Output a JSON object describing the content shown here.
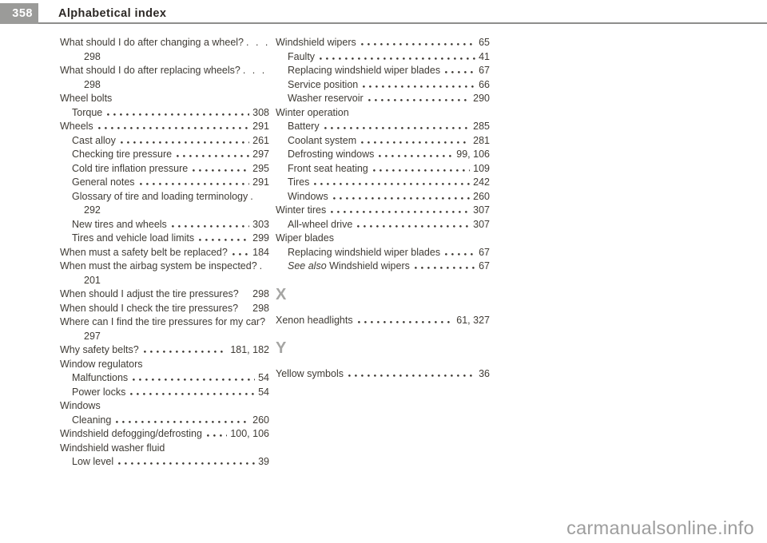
{
  "header": {
    "page_number": "358",
    "title": "Alphabetical index"
  },
  "watermark": {
    "text": "carmanualsonline.info"
  },
  "colors": {
    "badge_bg": "#9b9b99",
    "title": "#2c2825",
    "text": "#3f3b35",
    "letter": "#a5a5a3",
    "rule": "#8e8e8c",
    "watermark": "#9d9d9d"
  },
  "index": {
    "left": [
      {
        "label": "What should I do after changing a wheel?",
        "trail": ". . .",
        "page": "298",
        "wrap": true,
        "indent": 0
      },
      {
        "label": "What should I do after replacing wheels?",
        "trail": ". . .",
        "page": "298",
        "wrap": true,
        "indent": 0
      },
      {
        "label": "Wheel bolts",
        "type": "header",
        "indent": 0
      },
      {
        "label": "Torque",
        "page": "308",
        "indent": 1
      },
      {
        "label": "Wheels",
        "page": "291",
        "indent": 0
      },
      {
        "label": "Cast alloy",
        "page": "261",
        "indent": 1
      },
      {
        "label": "Checking tire pressure",
        "page": "297",
        "indent": 1
      },
      {
        "label": "Cold tire inflation pressure",
        "page": "295",
        "indent": 1
      },
      {
        "label": "General notes",
        "page": "291",
        "indent": 1
      },
      {
        "label": "Glossary of tire and loading terminology",
        "trail": ".",
        "page": "292",
        "wrap": true,
        "indent": 1
      },
      {
        "label": "New tires and wheels",
        "page": "303",
        "indent": 1
      },
      {
        "label": "Tires and vehicle load limits",
        "page": "299",
        "indent": 1
      },
      {
        "label": "When must a safety belt be replaced?",
        "page": "184",
        "indent": 0
      },
      {
        "label": "When must the airbag system be inspected?",
        "trail": ".",
        "page": "201",
        "wrap": true,
        "indent": 0
      },
      {
        "label": "When should I adjust the tire pressures?",
        "page": "298",
        "indent": 0,
        "noleader": true
      },
      {
        "label": "When should I check the tire pressures?",
        "page": "298",
        "indent": 0,
        "noleader": true
      },
      {
        "label": "Where can I find the tire pressures for my car?",
        "trail": "",
        "page": "297",
        "wrap": true,
        "indent": 0
      },
      {
        "label": "Why safety belts?",
        "page": "181, 182",
        "indent": 0
      },
      {
        "label": "Window regulators",
        "type": "header",
        "indent": 0
      },
      {
        "label": "Malfunctions",
        "page": "54",
        "indent": 1
      },
      {
        "label": "Power locks",
        "page": "54",
        "indent": 1
      },
      {
        "label": "Windows",
        "type": "header",
        "indent": 0
      },
      {
        "label": "Cleaning",
        "page": "260",
        "indent": 1
      },
      {
        "label": "Windshield defogging/defrosting",
        "page": "100, 106",
        "indent": 0
      },
      {
        "label": "Windshield washer fluid",
        "type": "header",
        "indent": 0
      },
      {
        "label": "Low level",
        "page": "39",
        "indent": 1
      }
    ],
    "right": [
      {
        "label": "Windshield wipers",
        "page": "65",
        "indent": 0
      },
      {
        "label": "Faulty",
        "page": "41",
        "indent": 1
      },
      {
        "label": "Replacing windshield wiper blades",
        "page": "67",
        "indent": 1
      },
      {
        "label": "Service position",
        "page": "66",
        "indent": 1
      },
      {
        "label": "Washer reservoir",
        "page": "290",
        "indent": 1
      },
      {
        "label": "Winter operation",
        "type": "header",
        "indent": 0
      },
      {
        "label": "Battery",
        "page": "285",
        "indent": 1
      },
      {
        "label": "Coolant system",
        "page": "281",
        "indent": 1
      },
      {
        "label": "Defrosting windows",
        "page": "99, 106",
        "indent": 1
      },
      {
        "label": "Front seat heating",
        "page": "109",
        "indent": 1
      },
      {
        "label": "Tires",
        "page": "242",
        "indent": 1
      },
      {
        "label": "Windows",
        "page": "260",
        "indent": 1
      },
      {
        "label": "Winter tires",
        "page": "307",
        "indent": 0
      },
      {
        "label": "All-wheel drive",
        "page": "307",
        "indent": 1
      },
      {
        "label": "Wiper blades",
        "type": "header",
        "indent": 0
      },
      {
        "label": "Replacing windshield wiper blades",
        "page": "67",
        "indent": 1
      },
      {
        "italic": "See also",
        "label": " Windshield wipers",
        "page": "67",
        "indent": 1
      },
      {
        "type": "letter",
        "label": "X"
      },
      {
        "label": "Xenon headlights",
        "page": "61, 327",
        "indent": 0
      },
      {
        "type": "letter",
        "label": "Y"
      },
      {
        "label": "Yellow symbols",
        "page": "36",
        "indent": 0
      }
    ]
  }
}
